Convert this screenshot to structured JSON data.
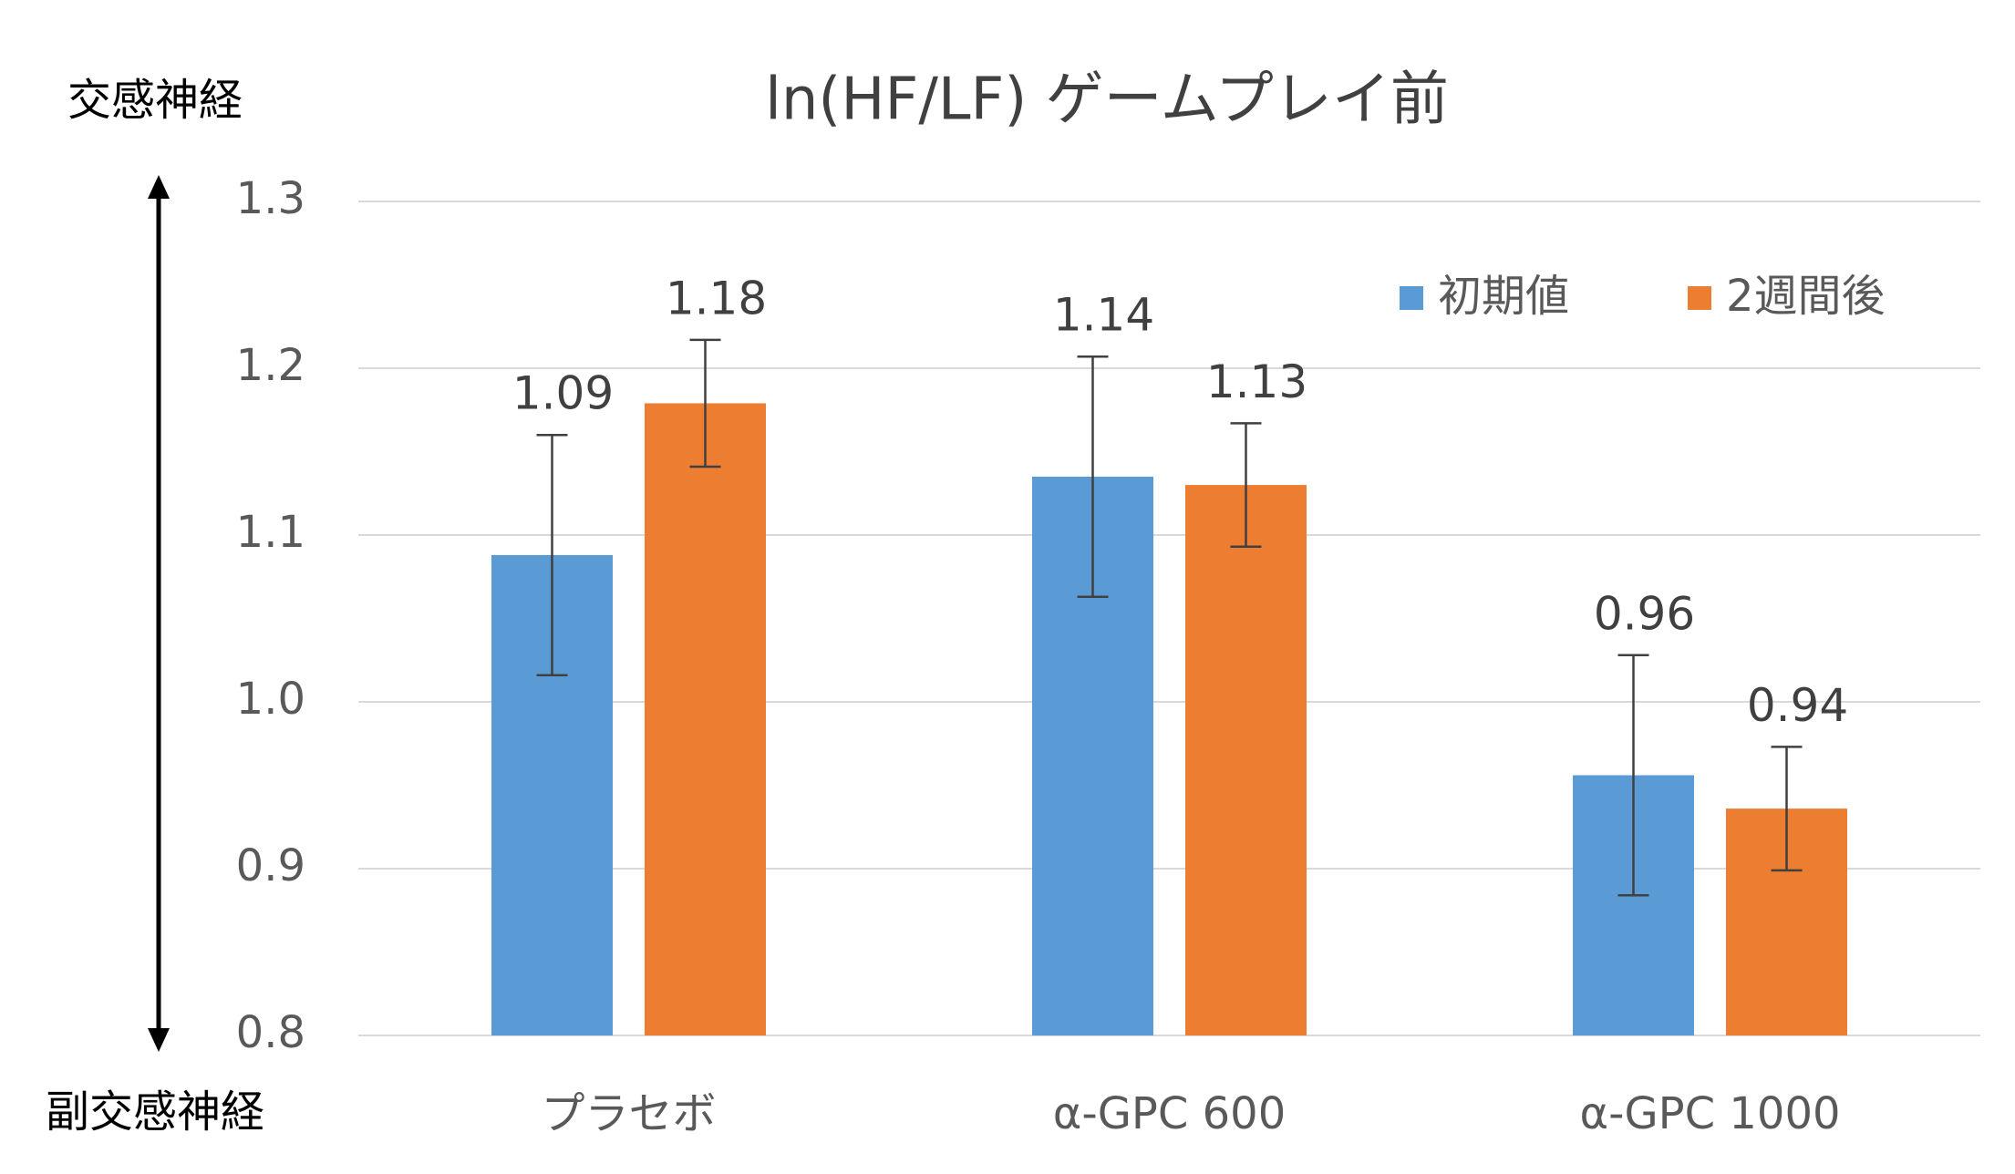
{
  "chart_data": {
    "type": "bar",
    "title": "ln(HF/LF)  ゲームプレイ前",
    "annotations": [
      "交感神経",
      "副交感神経"
    ],
    "categories": [
      "プラセボ",
      "α-GPC 600",
      "α-GPC 1000"
    ],
    "series": [
      {
        "name": "初期値",
        "color": "#5b9bd5",
        "values": [
          1.088,
          1.135,
          0.956
        ],
        "value_labels": [
          "1.09",
          "1.14",
          "0.96"
        ],
        "errors": [
          0.072,
          0.072,
          0.072
        ]
      },
      {
        "name": "2週間後",
        "color": "#ed7d31",
        "values": [
          1.179,
          1.13,
          0.936
        ],
        "value_labels": [
          "1.18",
          "1.13",
          "0.94"
        ],
        "errors": [
          0.038,
          0.037,
          0.037
        ]
      }
    ],
    "ylim": [
      0.8,
      1.3
    ],
    "yticks": [
      0.8,
      0.9,
      {
        "value": 1,
        "label": "1.0"
      },
      1.1,
      1.2,
      1.3
    ],
    "grid": true,
    "legend": "top-right"
  }
}
